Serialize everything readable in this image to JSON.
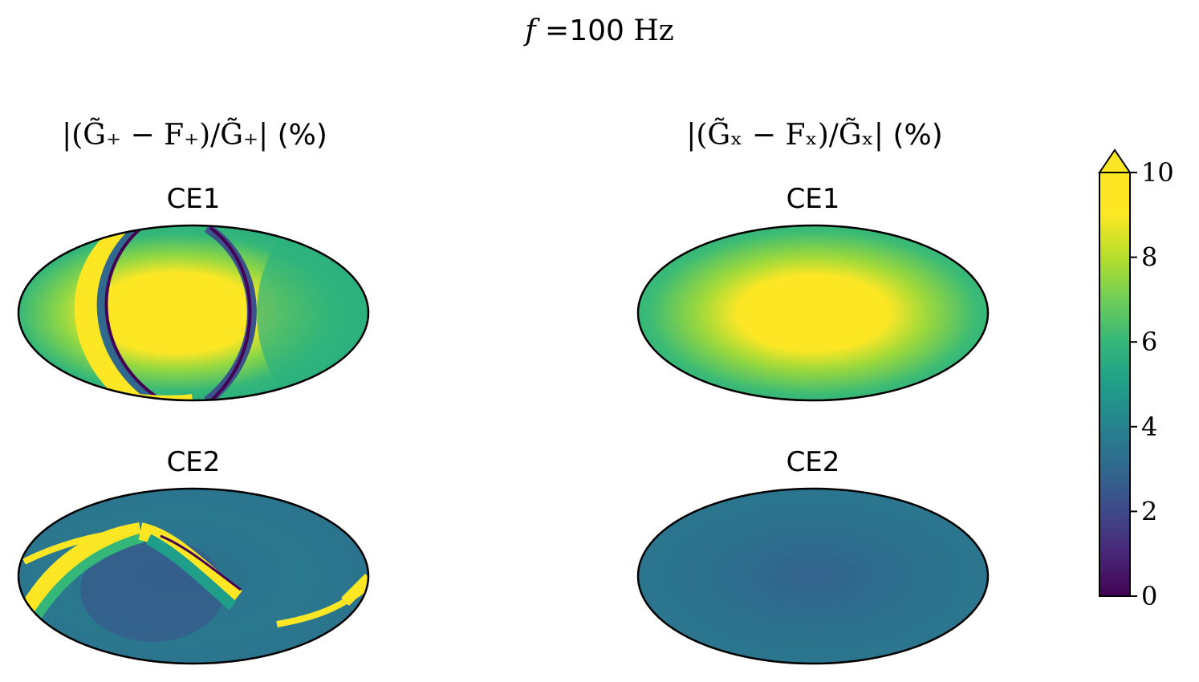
{
  "suptitle": {
    "var": "f",
    "eq": " =",
    "value": "100",
    "unit": " Hz"
  },
  "columns": [
    {
      "id": "plus",
      "title_math": "|(G̃₊ − F₊)/G̃₊|",
      "title_unit": " (%)"
    },
    {
      "id": "cross",
      "title_math": "|(G̃ₓ − Fₓ)/G̃ₓ|",
      "title_unit": " (%)"
    }
  ],
  "chart_data": {
    "type": "heatmap",
    "projection": "mollweide",
    "colormap": "viridis",
    "colorbar": {
      "ticks": [
        "0",
        "2",
        "4",
        "6",
        "8",
        "10"
      ],
      "range": [
        0,
        10
      ],
      "extend": "max"
    },
    "panels": [
      {
        "id": "plus-ce1",
        "title": "CE1",
        "column": "plus",
        "typical_value_range": [
          0,
          10
        ]
      },
      {
        "id": "cross-ce1",
        "title": "CE1",
        "column": "cross",
        "typical_value_range": [
          5,
          10
        ]
      },
      {
        "id": "plus-ce2",
        "title": "CE2",
        "column": "plus",
        "typical_value_range": [
          2,
          10
        ]
      },
      {
        "id": "cross-ce2",
        "title": "CE2",
        "column": "cross",
        "typical_value_range": [
          3,
          5
        ]
      }
    ]
  },
  "colors": {
    "viridis_0": "#440154",
    "viridis_2": "#3b528b",
    "viridis_4": "#21918c",
    "viridis_6": "#2db27d",
    "viridis_8": "#5ec962",
    "viridis_10": "#fde725"
  }
}
